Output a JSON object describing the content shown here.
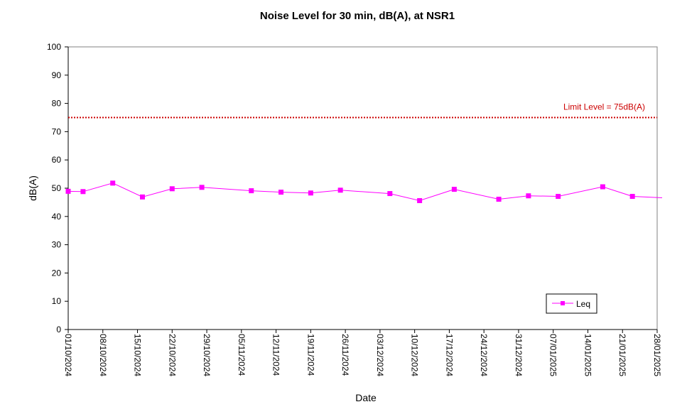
{
  "chart_data": {
    "type": "line",
    "title": "Noise Level for 30 min, dB(A), at NSR1",
    "xlabel": "Date",
    "ylabel": "dB(A)",
    "ylim": [
      0,
      100
    ],
    "yticks": [
      0,
      10,
      20,
      30,
      40,
      50,
      60,
      70,
      80,
      90,
      100
    ],
    "xlim": [
      "01/10/2024",
      "28/01/2025"
    ],
    "xticks": [
      "01/10/2024",
      "08/10/2024",
      "15/10/2024",
      "22/10/2024",
      "29/10/2024",
      "05/11/2024",
      "12/11/2024",
      "19/11/2024",
      "26/11/2024",
      "03/12/2024",
      "10/12/2024",
      "17/12/2024",
      "24/12/2024",
      "31/12/2024",
      "07/01/2025",
      "14/01/2025",
      "21/01/2025",
      "28/01/2025"
    ],
    "grid": false,
    "legend_position": "bottom-right",
    "series": [
      {
        "name": "Leq",
        "color": "#ff00ff",
        "marker": "square",
        "x": [
          "01/10/2024",
          "04/10/2024",
          "10/10/2024",
          "16/10/2024",
          "22/10/2024",
          "28/10/2024",
          "07/11/2024",
          "13/11/2024",
          "19/11/2024",
          "25/11/2024",
          "05/12/2024",
          "11/12/2024",
          "18/12/2024",
          "27/12/2024",
          "02/01/2025",
          "08/01/2025",
          "17/01/2025",
          "23/01/2025",
          "29/01/2025"
        ],
        "values": [
          48.9,
          48.8,
          51.8,
          46.9,
          49.8,
          50.3,
          49.1,
          48.6,
          48.3,
          49.3,
          48.1,
          45.6,
          49.6,
          46.1,
          47.3,
          47.1,
          50.5,
          47.1,
          46.6
        ],
        "continues_from_left": true
      }
    ],
    "annotations": [
      {
        "text": "Limit Level  = 75dB(A)",
        "y": 75,
        "color": "#cc0000",
        "style": "dotted"
      }
    ]
  }
}
